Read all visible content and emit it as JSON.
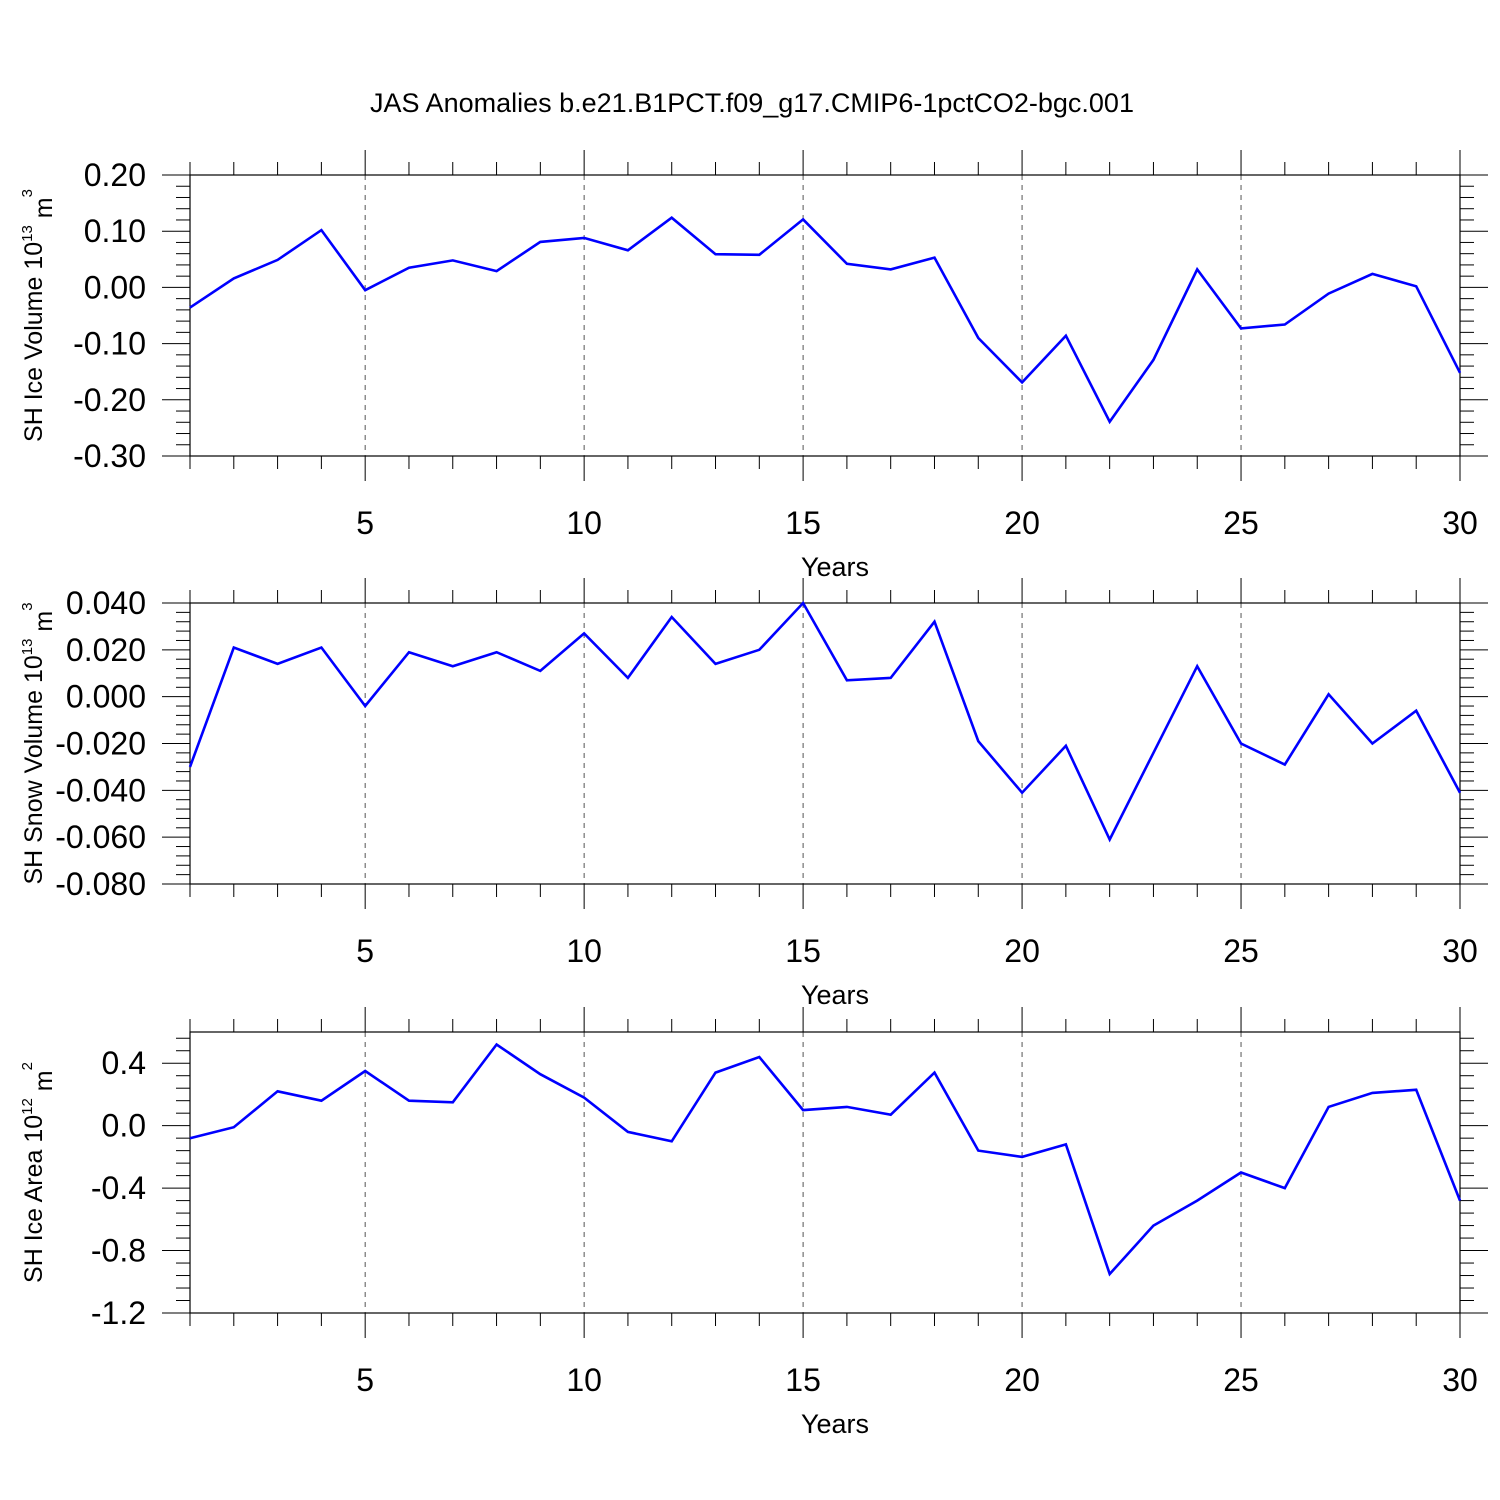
{
  "title": "JAS Anomalies b.e21.B1PCT.f09_g17.CMIP6-1pctCO2-bgc.001",
  "chart_data": [
    {
      "type": "line",
      "ylabel_main": "SH Ice Volume 10",
      "ylabel_exp": "13",
      "ylabel_unit": " m",
      "ylabel_unit_exp": "3",
      "xlabel": "Years",
      "xlim": [
        1,
        30
      ],
      "ylim": [
        -0.3,
        0.2
      ],
      "yticks": [
        -0.3,
        -0.2,
        -0.1,
        0.0,
        0.1,
        0.2
      ],
      "ytick_labels": [
        "-0.30",
        "-0.20",
        "-0.10",
        "0.00",
        "0.10",
        "0.20"
      ],
      "xticks": [
        5,
        10,
        15,
        20,
        25,
        30
      ],
      "xtick_labels": [
        "5",
        "10",
        "15",
        "20",
        "25",
        "30"
      ],
      "grid": "dashed vertical at major x ticks",
      "series": [
        {
          "color": "#0000ff",
          "x": [
            1,
            2,
            3,
            4,
            5,
            6,
            7,
            8,
            9,
            10,
            11,
            12,
            13,
            14,
            15,
            16,
            17,
            18,
            19,
            20,
            21,
            22,
            23,
            24,
            25,
            26,
            27,
            28,
            29,
            30
          ],
          "y": [
            -0.036,
            0.016,
            0.049,
            0.102,
            -0.005,
            0.035,
            0.048,
            0.029,
            0.081,
            0.088,
            0.066,
            0.124,
            0.059,
            0.058,
            0.121,
            0.042,
            0.032,
            0.053,
            -0.09,
            -0.169,
            -0.086,
            -0.239,
            -0.129,
            0.032,
            -0.073,
            -0.066,
            -0.011,
            0.024,
            0.002,
            -0.152
          ]
        }
      ]
    },
    {
      "type": "line",
      "ylabel_main": "SH Snow Volume 10",
      "ylabel_exp": "13",
      "ylabel_unit": " m",
      "ylabel_unit_exp": "3",
      "xlabel": "Years",
      "xlim": [
        1,
        30
      ],
      "ylim": [
        -0.08,
        0.04
      ],
      "yticks": [
        -0.08,
        -0.06,
        -0.04,
        -0.02,
        0.0,
        0.02,
        0.04
      ],
      "ytick_labels": [
        "-0.080",
        "-0.060",
        "-0.040",
        "-0.020",
        "0.000",
        "0.020",
        "0.040"
      ],
      "xticks": [
        5,
        10,
        15,
        20,
        25,
        30
      ],
      "xtick_labels": [
        "5",
        "10",
        "15",
        "20",
        "25",
        "30"
      ],
      "grid": "dashed vertical at major x ticks",
      "series": [
        {
          "color": "#0000ff",
          "x": [
            1,
            2,
            3,
            4,
            5,
            6,
            7,
            8,
            9,
            10,
            11,
            12,
            13,
            14,
            15,
            16,
            17,
            18,
            19,
            20,
            21,
            22,
            23,
            24,
            25,
            26,
            27,
            28,
            29,
            30
          ],
          "y": [
            -0.03,
            0.021,
            0.014,
            0.021,
            -0.004,
            0.019,
            0.013,
            0.019,
            0.011,
            0.027,
            0.008,
            0.034,
            0.014,
            0.02,
            0.04,
            0.007,
            0.008,
            0.032,
            -0.019,
            -0.041,
            -0.021,
            -0.061,
            -0.024,
            0.013,
            -0.02,
            -0.029,
            0.001,
            -0.02,
            -0.006,
            -0.041
          ]
        }
      ]
    },
    {
      "type": "line",
      "ylabel_main": "SH Ice Area 10",
      "ylabel_exp": "12",
      "ylabel_unit": " m",
      "ylabel_unit_exp": "2",
      "xlabel": "Years",
      "xlim": [
        1,
        30
      ],
      "ylim": [
        -1.2,
        0.6
      ],
      "yticks": [
        -1.2,
        -0.8,
        -0.4,
        0.0,
        0.4
      ],
      "ytick_labels": [
        "-1.2",
        "-0.8",
        "-0.4",
        "0.0",
        "0.4"
      ],
      "xticks": [
        5,
        10,
        15,
        20,
        25,
        30
      ],
      "xtick_labels": [
        "5",
        "10",
        "15",
        "20",
        "25",
        "30"
      ],
      "grid": "dashed vertical at major x ticks",
      "series": [
        {
          "color": "#0000ff",
          "x": [
            1,
            2,
            3,
            4,
            5,
            6,
            7,
            8,
            9,
            10,
            11,
            12,
            13,
            14,
            15,
            16,
            17,
            18,
            19,
            20,
            21,
            22,
            23,
            24,
            25,
            26,
            27,
            28,
            29,
            30
          ],
          "y": [
            -0.08,
            -0.01,
            0.22,
            0.16,
            0.35,
            0.16,
            0.15,
            0.52,
            0.33,
            0.18,
            -0.04,
            -0.1,
            0.34,
            0.44,
            0.1,
            0.12,
            0.07,
            0.34,
            -0.16,
            -0.2,
            -0.12,
            -0.95,
            -0.64,
            -0.48,
            -0.3,
            -0.4,
            0.12,
            0.21,
            0.23,
            -0.48
          ]
        }
      ]
    }
  ]
}
